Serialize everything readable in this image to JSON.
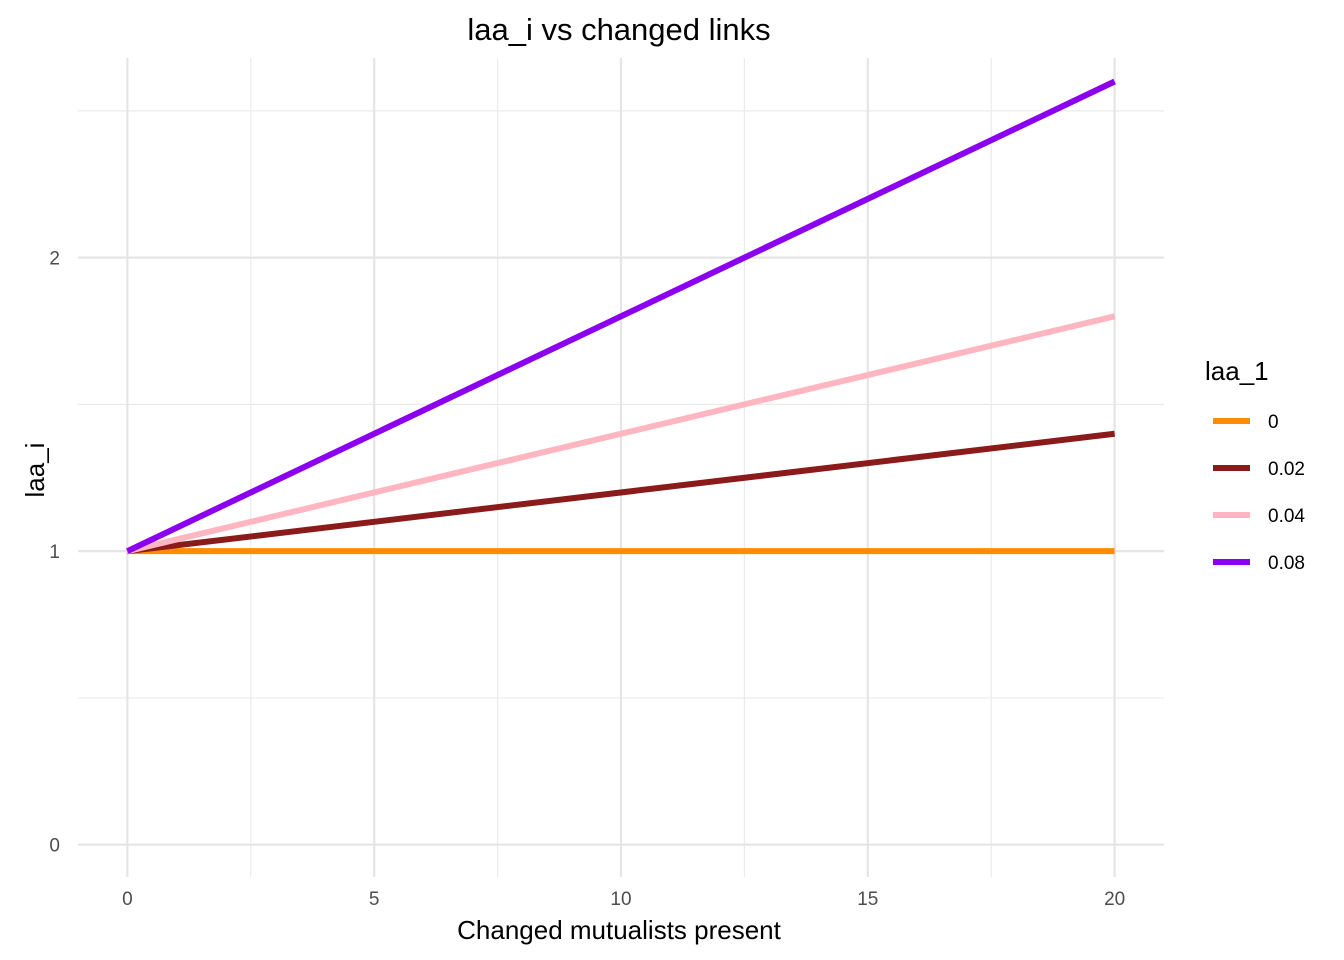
{
  "chart_data": {
    "type": "line",
    "title": "laa_i vs changed links",
    "xlabel": "Changed mutualists present",
    "ylabel": "laa_i",
    "xlim": [
      -1,
      21
    ],
    "ylim": [
      -0.11,
      2.68
    ],
    "x_ticks": [
      0,
      5,
      10,
      15,
      20
    ],
    "x_tick_labels": [
      "0",
      "5",
      "10",
      "15",
      "20"
    ],
    "x_minor_ticks": [
      2.5,
      7.5,
      12.5,
      17.5
    ],
    "y_ticks": [
      0,
      1,
      2
    ],
    "y_tick_labels": [
      "0",
      "1",
      "2"
    ],
    "y_minor_ticks": [
      0.5,
      1.5,
      2.5
    ],
    "grid": true,
    "legend": {
      "title": "laa_1",
      "placement": "right"
    },
    "series": [
      {
        "name": "0",
        "color": "#FF8C00",
        "x": [
          0,
          20
        ],
        "y": [
          1.0,
          1.0
        ]
      },
      {
        "name": "0.02",
        "color": "#8B1A1A",
        "x": [
          0,
          20
        ],
        "y": [
          1.0,
          1.4
        ]
      },
      {
        "name": "0.04",
        "color": "#FFB6C1",
        "x": [
          0,
          20
        ],
        "y": [
          1.0,
          1.8
        ]
      },
      {
        "name": "0.08",
        "color": "#8B00EE",
        "x": [
          0,
          20
        ],
        "y": [
          1.0,
          2.6
        ]
      }
    ]
  }
}
